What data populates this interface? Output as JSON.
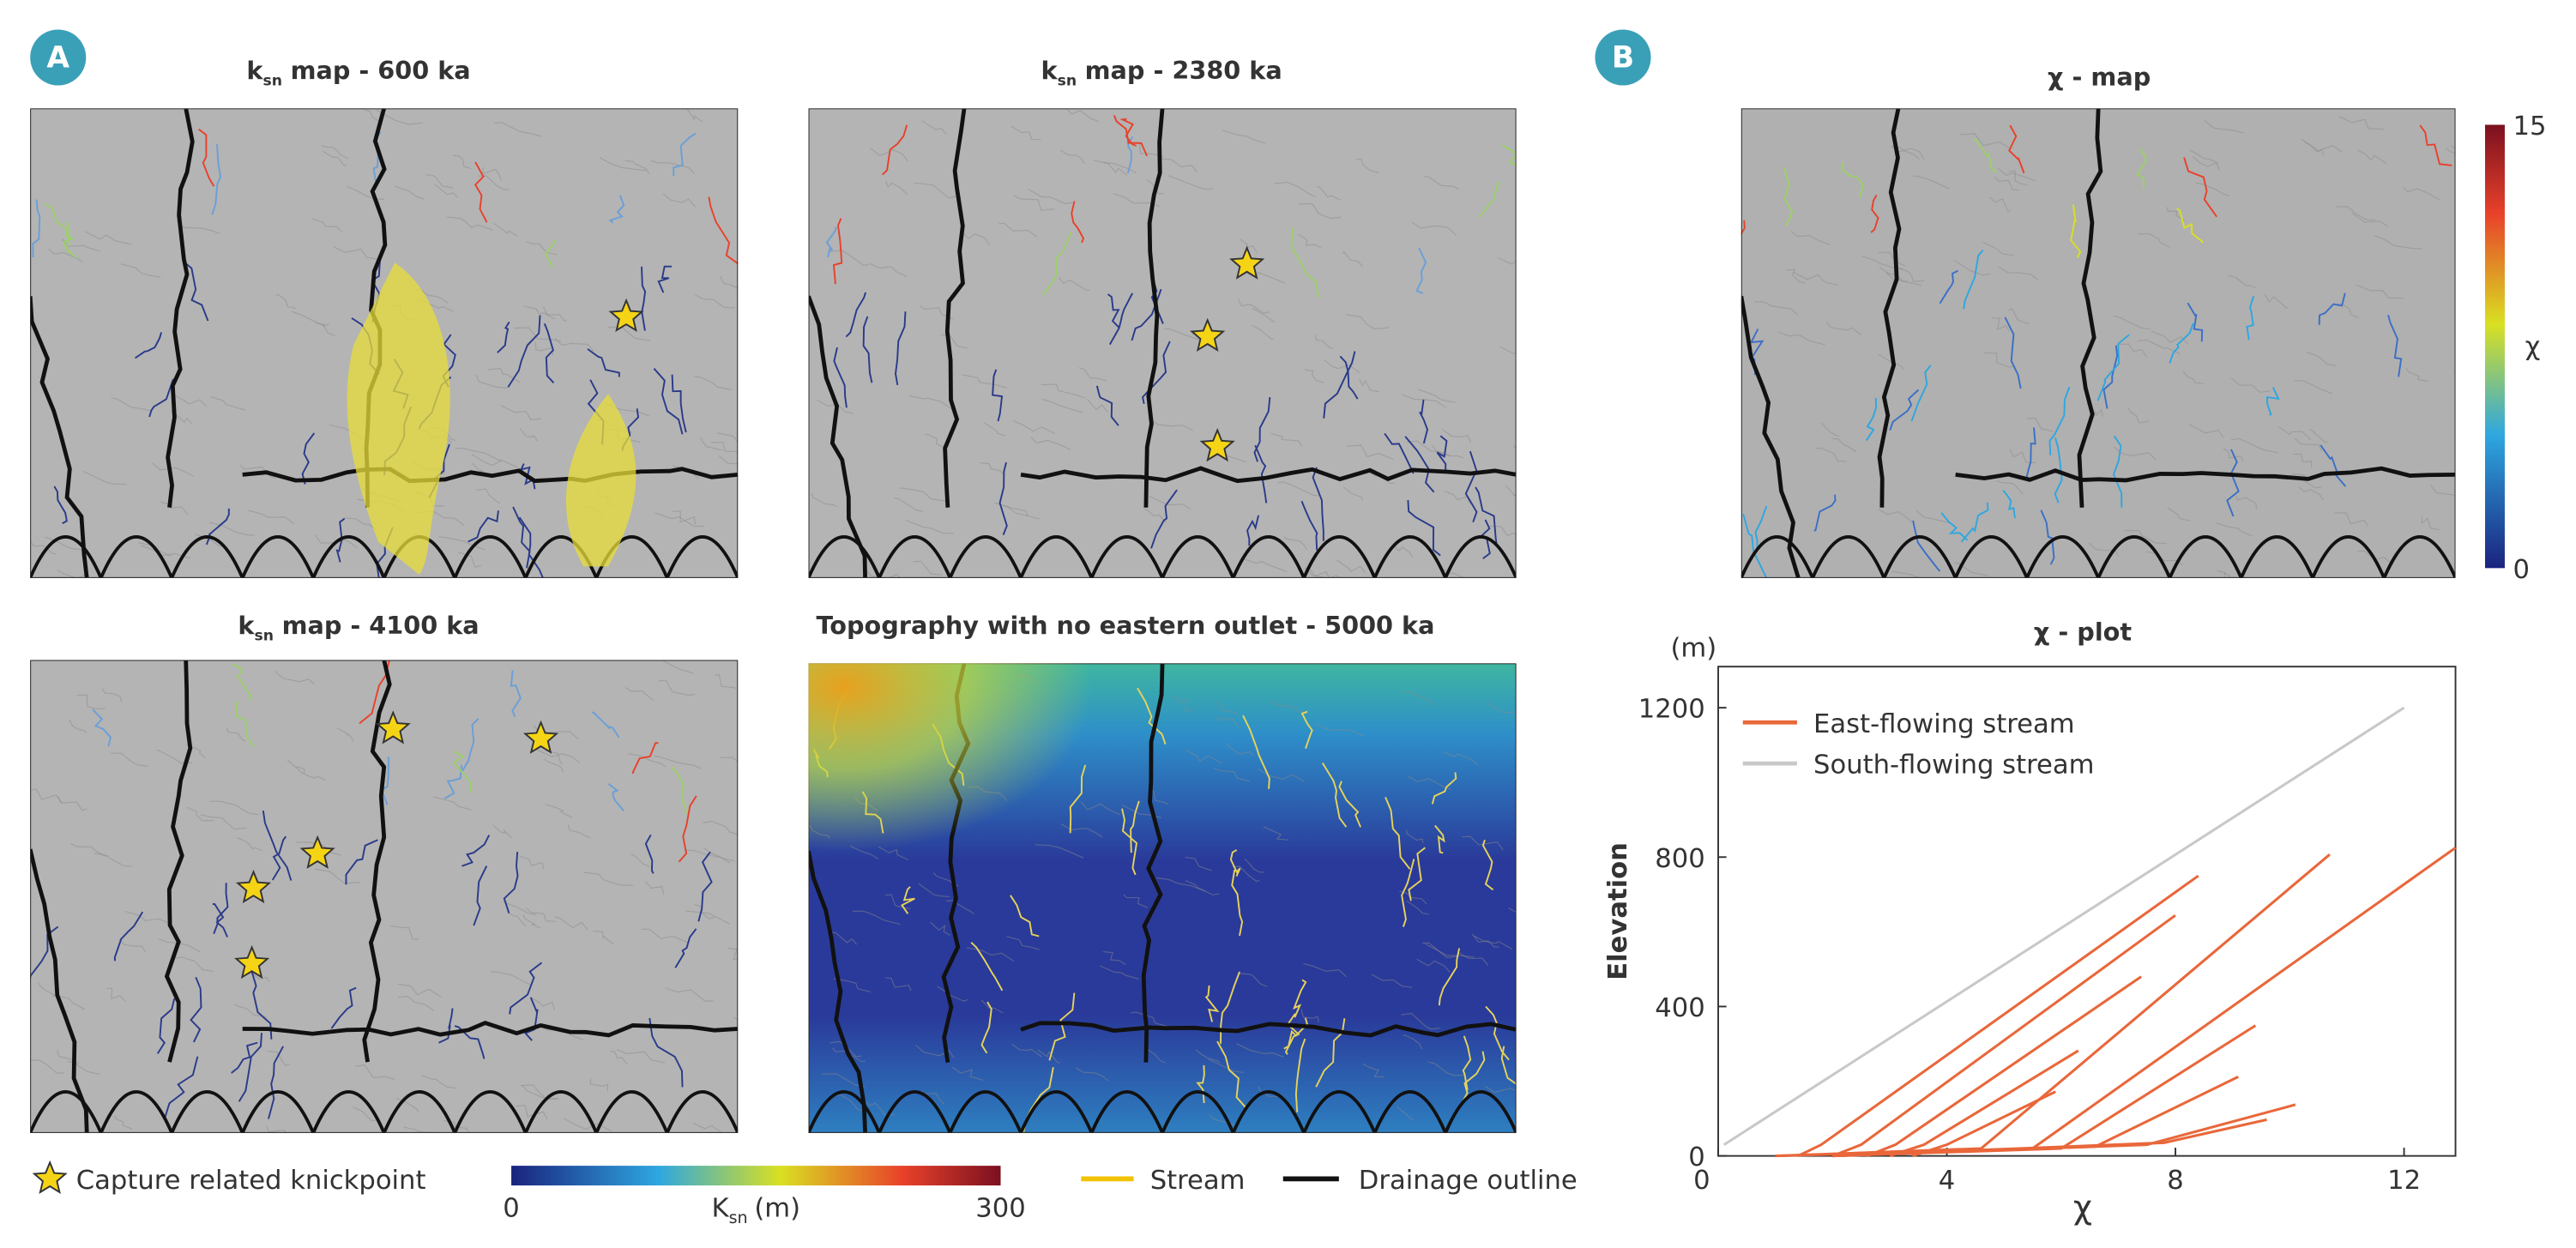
{
  "panels": {
    "a": "A",
    "b": "B"
  },
  "maps": [
    {
      "k": "k",
      "sub": "sn",
      "rest": "map - 600 ka"
    },
    {
      "k": "k",
      "sub": "sn",
      "rest": "map - 2380 ka"
    },
    {
      "k": "k",
      "sub": "sn",
      "rest": "map - 4100 ka"
    }
  ],
  "topo_title": "Topography with no eastern outlet - 5000 ka",
  "chi_map": {
    "title": "χ - map",
    "label": "χ",
    "ticks": [
      0,
      15
    ]
  },
  "legend": {
    "knickpoint": "Capture related knickpoint",
    "ksn": {
      "k": "K",
      "sub": "sn",
      "unit": "(m)",
      "ticks": [
        0,
        300
      ]
    },
    "stream": "Stream",
    "outline": "Drainage outline"
  },
  "chart_data": {
    "type": "line",
    "title": "χ - plot",
    "x_label": "χ",
    "y_label": "Elevation",
    "y_unit": "(m)",
    "xlim": [
      0,
      12.9
    ],
    "ylim": [
      0,
      1310
    ],
    "xticks": [
      0,
      4,
      8,
      12
    ],
    "yticks": [
      0,
      400,
      800,
      1200
    ],
    "series": [
      {
        "name": "East-flowing stream",
        "color": "#e9673a",
        "lines": [
          {
            "x": [
              1.4,
              1.8,
              8.4
            ],
            "values": [
              0,
              30,
              750
            ]
          },
          {
            "x": [
              2.0,
              2.5,
              8.0
            ],
            "values": [
              0,
              30,
              644
            ]
          },
          {
            "x": [
              2.6,
              3.1,
              7.4
            ],
            "values": [
              0,
              30,
              480
            ]
          },
          {
            "x": [
              3.0,
              3.6,
              6.3
            ],
            "values": [
              0,
              30,
              282
            ]
          },
          {
            "x": [
              3.4,
              4.0,
              5.9
            ],
            "values": [
              0,
              30,
              172
            ]
          },
          {
            "x": [
              1.0,
              4.6,
              10.7
            ],
            "values": [
              0,
              20,
              807
            ]
          },
          {
            "x": [
              1.0,
              5.5,
              12.9
            ],
            "values": [
              0,
              20,
              825
            ]
          },
          {
            "x": [
              2.0,
              6.0,
              9.4
            ],
            "values": [
              0,
              20,
              349
            ]
          },
          {
            "x": [
              2.0,
              6.6,
              9.1
            ],
            "values": [
              0,
              25,
              212
            ]
          },
          {
            "x": [
              2.0,
              7.5,
              10.1
            ],
            "values": [
              0,
              30,
              137
            ]
          },
          {
            "x": [
              2.0,
              7.8,
              9.6
            ],
            "values": [
              0,
              35,
              97
            ]
          }
        ]
      },
      {
        "name": "South-flowing stream",
        "color": "#c8c8c8",
        "lines": [
          {
            "x": [
              0.1,
              12
            ],
            "values": [
              30,
              1200
            ]
          }
        ]
      }
    ]
  }
}
